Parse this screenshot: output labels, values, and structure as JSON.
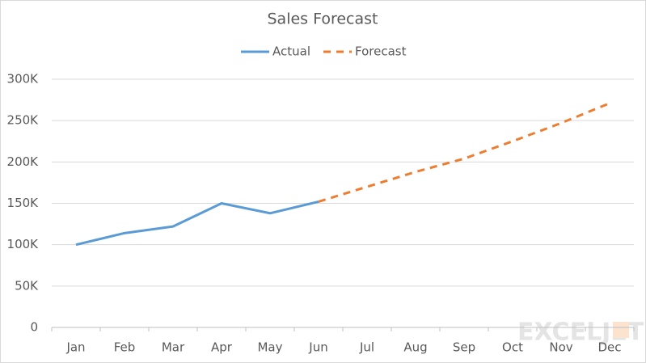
{
  "chart_data": {
    "type": "line",
    "title": "Sales Forecast",
    "categories": [
      "Jan",
      "Feb",
      "Mar",
      "Apr",
      "May",
      "Jun",
      "Jul",
      "Aug",
      "Sep",
      "Oct",
      "Nov",
      "Dec"
    ],
    "series": [
      {
        "name": "Actual",
        "color": "#5b9bd5",
        "dashed": false,
        "values": [
          100000,
          114000,
          122000,
          150000,
          138000,
          152000,
          null,
          null,
          null,
          null,
          null,
          null
        ]
      },
      {
        "name": "Forecast",
        "color": "#ed7d31",
        "dashed": true,
        "values": [
          null,
          null,
          null,
          null,
          null,
          152000,
          170000,
          188000,
          204000,
          225000,
          247000,
          271000
        ]
      }
    ],
    "ylim": [
      0,
      300000
    ],
    "yticks": [
      0,
      {
        "value": 50000,
        "label": "50K"
      },
      {
        "value": 100000,
        "label": "100K"
      },
      {
        "value": 150000,
        "label": "150K"
      },
      {
        "value": 200000,
        "label": "200K"
      },
      {
        "value": 250000,
        "label": "250K"
      },
      {
        "value": 300000,
        "label": "300K"
      }
    ],
    "grid": true,
    "legend": "top",
    "watermark": "EXCELJET"
  }
}
